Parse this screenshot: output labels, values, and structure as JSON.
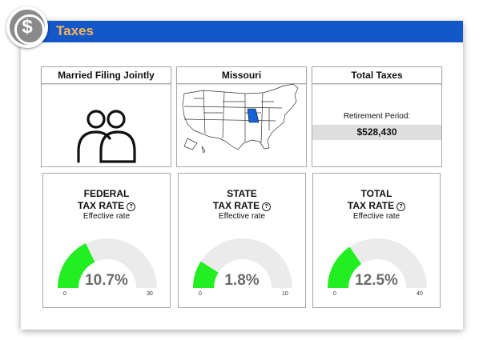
{
  "header": {
    "title": "Taxes",
    "badge_icon": "dollar-icon",
    "badge_symbol": "$"
  },
  "colors": {
    "header_bg": "#1357c9",
    "title": "#f3b55a",
    "gauge_fill": "#22ee22",
    "gauge_track": "#ebebeb",
    "state_highlight": "#1463d6"
  },
  "cards": {
    "filing": {
      "title": "Married Filing Jointly",
      "icon": "two-people-icon"
    },
    "state": {
      "title": "Missouri",
      "icon": "us-map-icon"
    },
    "total": {
      "title": "Total Taxes",
      "period_label": "Retirement Period:",
      "amount": "$528,430"
    }
  },
  "gauges": [
    {
      "line1": "FEDERAL",
      "line2": "TAX RATE",
      "subtitle": "Effective rate",
      "value": 10.7,
      "value_text": "10.7%",
      "min": 0,
      "max": 30,
      "min_label": "0",
      "max_label": "30"
    },
    {
      "line1": "STATE",
      "line2": "TAX RATE",
      "subtitle": "Effective rate",
      "value": 1.8,
      "value_text": "1.8%",
      "min": 0,
      "max": 10,
      "min_label": "0",
      "max_label": "10"
    },
    {
      "line1": "TOTAL",
      "line2": "TAX RATE",
      "subtitle": "Effective rate",
      "value": 12.5,
      "value_text": "12.5%",
      "min": 0,
      "max": 40,
      "min_label": "0",
      "max_label": "40"
    }
  ]
}
